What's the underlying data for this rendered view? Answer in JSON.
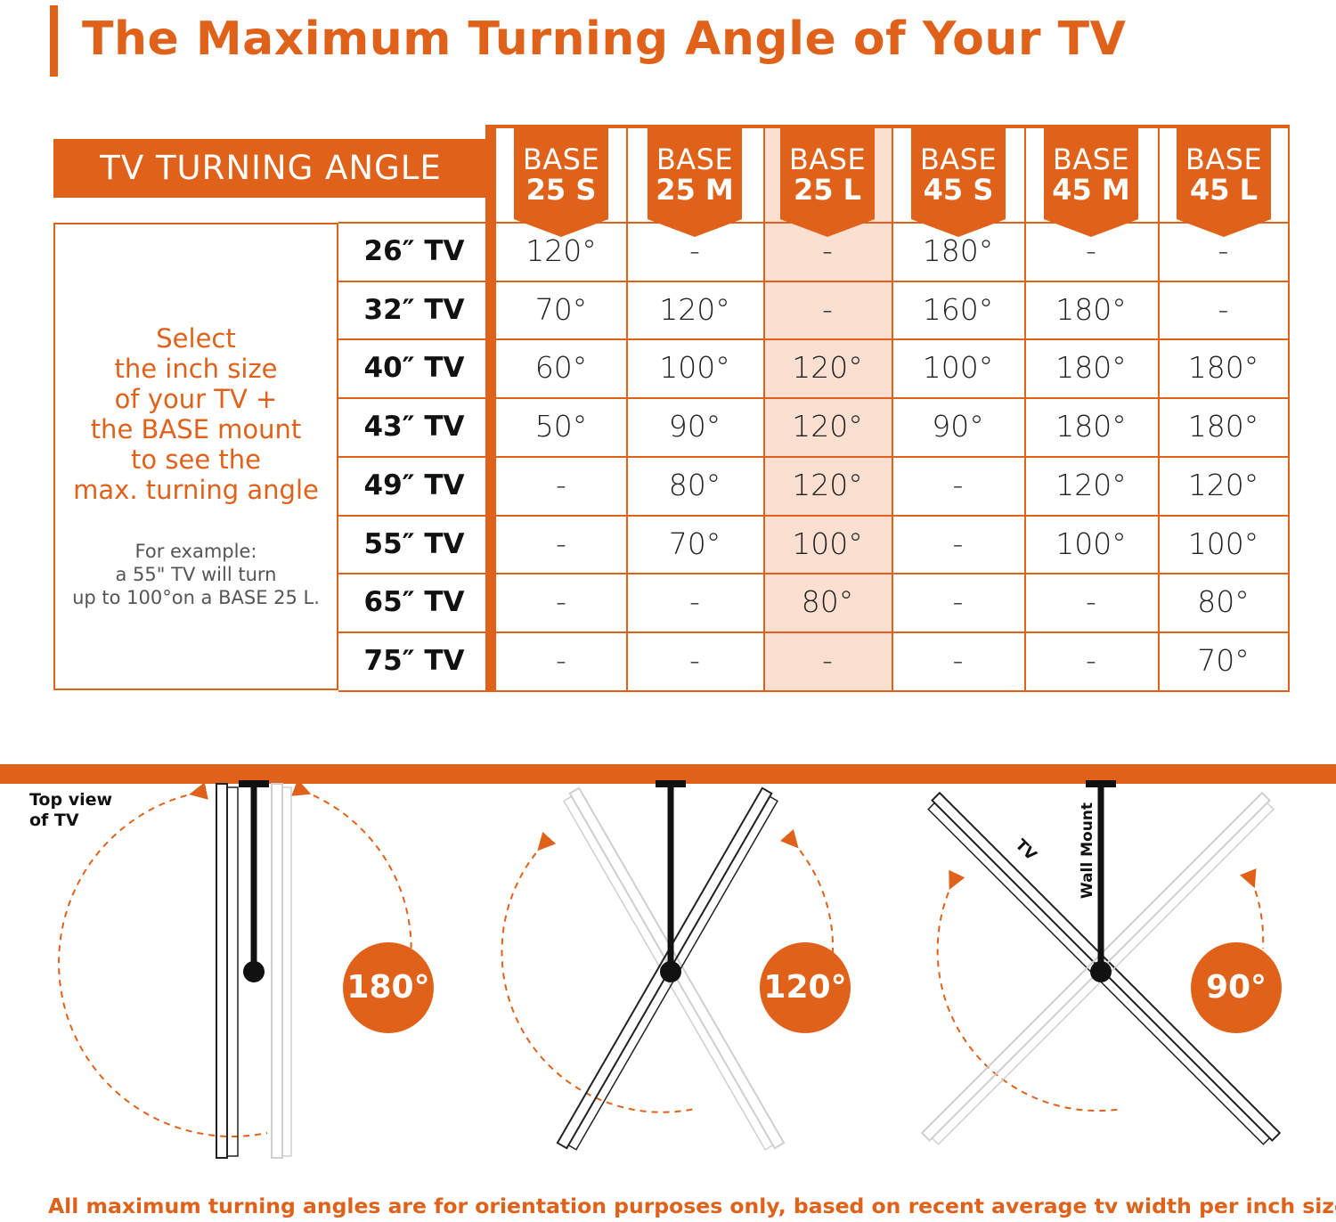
{
  "title": "The Maximum Turning Angle of Your TV",
  "table": {
    "header_label": "TV TURNING ANGLE",
    "bases": [
      {
        "line1": "BASE",
        "line2": "25 S"
      },
      {
        "line1": "BASE",
        "line2": "25 M"
      },
      {
        "line1": "BASE",
        "line2": "25 L"
      },
      {
        "line1": "BASE",
        "line2": "45 S"
      },
      {
        "line1": "BASE",
        "line2": "45 M"
      },
      {
        "line1": "BASE",
        "line2": "45 L"
      }
    ],
    "highlighted_base_index": 2,
    "rows": [
      {
        "label": "26″ TV",
        "values": [
          "120°",
          "-",
          "-",
          "180°",
          "-",
          "-"
        ]
      },
      {
        "label": "32″ TV",
        "values": [
          "70°",
          "120°",
          "-",
          "160°",
          "180°",
          "-"
        ]
      },
      {
        "label": "40″ TV",
        "values": [
          "60°",
          "100°",
          "120°",
          "100°",
          "180°",
          "180°"
        ]
      },
      {
        "label": "43″ TV",
        "values": [
          "50°",
          "90°",
          "120°",
          "90°",
          "180°",
          "180°"
        ]
      },
      {
        "label": "49″ TV",
        "values": [
          "-",
          "80°",
          "120°",
          "-",
          "120°",
          "120°"
        ]
      },
      {
        "label": "55″ TV",
        "values": [
          "-",
          "70°",
          "100°",
          "-",
          "100°",
          "100°"
        ]
      },
      {
        "label": "65″ TV",
        "values": [
          "-",
          "-",
          "80°",
          "-",
          "-",
          "80°"
        ]
      },
      {
        "label": "75″ TV",
        "values": [
          "-",
          "-",
          "-",
          "-",
          "-",
          "70°"
        ]
      }
    ],
    "instruction_lines": [
      "Select",
      "the inch size",
      "of your TV +",
      "the BASE mount",
      "to see the",
      "max. turning angle"
    ],
    "example_lines": [
      "For example:",
      "a 55\" TV will turn",
      "up to 100°on a BASE 25 L."
    ]
  },
  "diagrams": {
    "top_view_lines": [
      "Top view",
      "of TV"
    ],
    "tv_label": "TV",
    "wall_mount_label": "Wall Mount",
    "angles": [
      "180°",
      "120°",
      "90°"
    ]
  },
  "footer": "All maximum turning angles are for orientation purposes only, based on recent average tv width per inch size",
  "colors": {
    "accent": "#e0621a",
    "highlight": "#fbe0d2"
  }
}
